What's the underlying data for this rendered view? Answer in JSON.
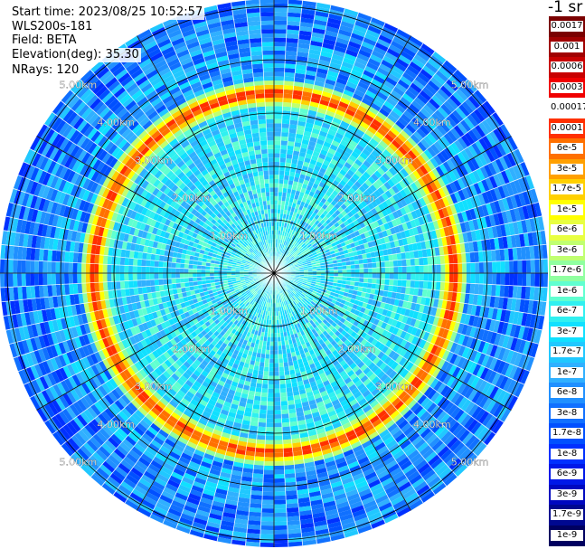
{
  "header": {
    "start_time": "Start time: 2023/08/25 10:52:57",
    "instrument": "WLS200s-181",
    "field": "Field: BETA",
    "elevation": "Elevation(deg): 35.30",
    "nrays": "NRays: 120"
  },
  "colorbar": {
    "unit_label": "-1 sr",
    "ticks": [
      "0.0017",
      "0.001",
      "0.0006",
      "0.0003",
      "0.00017",
      "0.0001",
      "6e-5",
      "3e-5",
      "1.7e-5",
      "1e-5",
      "6e-6",
      "3e-6",
      "1.7e-6",
      "1e-6",
      "6e-7",
      "3e-7",
      "1.7e-7",
      "1e-7",
      "6e-8",
      "3e-8",
      "1.7e-8",
      "1e-8",
      "6e-9",
      "3e-9",
      "1.7e-9",
      "1e-9"
    ],
    "colors": [
      "#7a0000",
      "#a00000",
      "#c80000",
      "#f00000",
      "#ffffff",
      "#ff3000",
      "#ff7000",
      "#ffa000",
      "#ffd000",
      "#ffff00",
      "#e8ff40",
      "#c0ff70",
      "#90ffa0",
      "#60ffd0",
      "#30f0f0",
      "#10e0ff",
      "#20c8ff",
      "#30b0ff",
      "#2090ff",
      "#1070ff",
      "#0050ff",
      "#0030ff",
      "#0018e8",
      "#0008c0",
      "#000890",
      "#000060"
    ]
  },
  "map": {
    "ring_labels": [
      "1.00km",
      "2.00km",
      "3.00km",
      "4.00km",
      "5.00km"
    ],
    "n_rays": 120,
    "aerosol_ring_km": 3.35
  }
}
